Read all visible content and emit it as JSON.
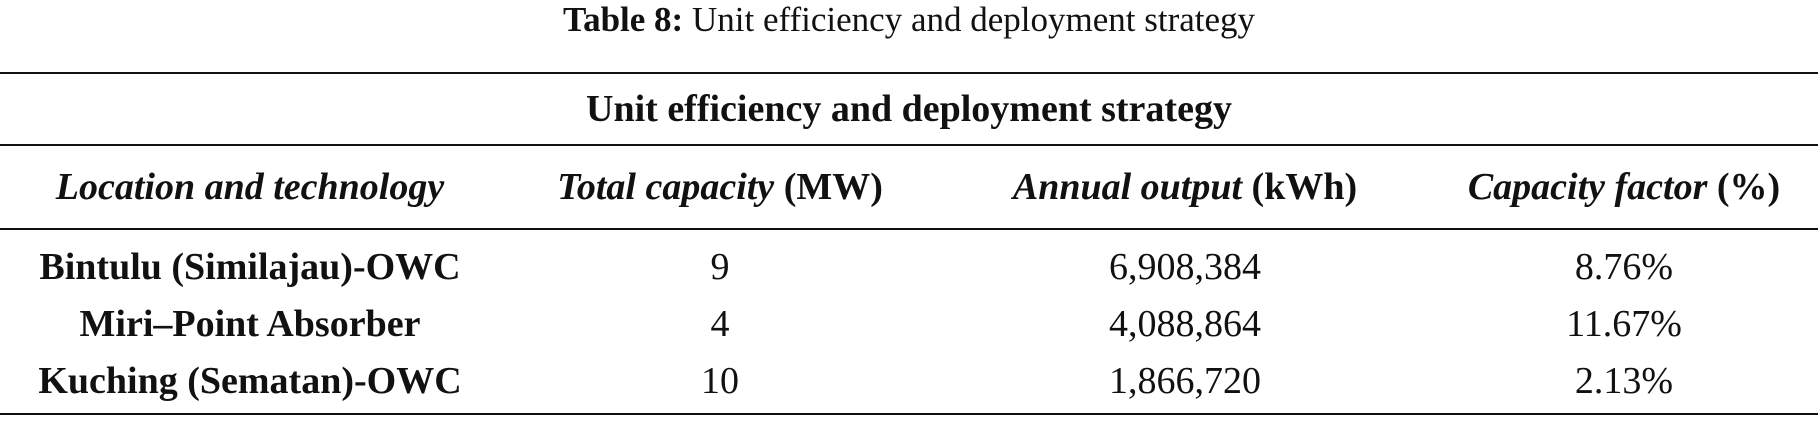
{
  "caption": {
    "label": "Table 8:",
    "text": "Unit efficiency and deployment strategy"
  },
  "table": {
    "group_header": "Unit efficiency and deployment strategy",
    "columns": [
      {
        "name": "Location and technology",
        "unit": ""
      },
      {
        "name": "Total capacity",
        "unit": "(MW)"
      },
      {
        "name": "Annual output",
        "unit": "(kWh)"
      },
      {
        "name": "Capacity factor",
        "unit": "(%)"
      }
    ],
    "rows": [
      {
        "location": "Bintulu (Similajau)-OWC",
        "capacity": "9",
        "output": "6,908,384",
        "factor": "8.76%"
      },
      {
        "location": "Miri–Point Absorber",
        "capacity": "4",
        "output": "4,088,864",
        "factor": "11.67%"
      },
      {
        "location": "Kuching (Sematan)-OWC",
        "capacity": "10",
        "output": "1,866,720",
        "factor": "2.13%"
      }
    ]
  }
}
